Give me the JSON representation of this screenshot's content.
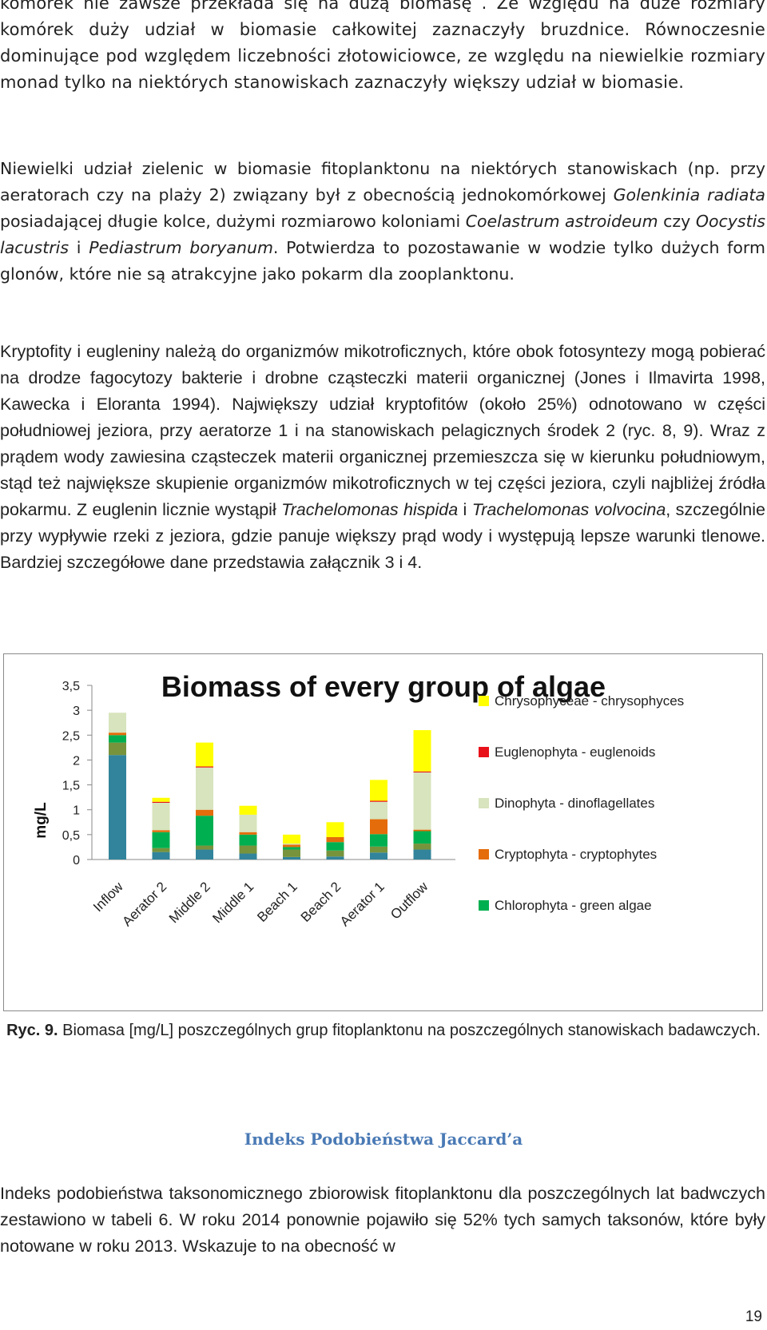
{
  "paragraphs": {
    "p1": "komórek nie zawsze przekłada się na dużą biomasę . Ze względu na duże rozmiary komórek duży udział w biomasie całkowitej zaznaczyły bruzdnice. Równoczesnie dominujące pod względem liczebności złotowiciowce, ze względu na niewielkie rozmiary monad tylko na niektórych stanowiskach zaznaczyły większy udział w biomasie.",
    "p2_a": "Niewielki udział zielenic w biomasie fitoplanktonu na niektórych stanowiskach (np. przy aeratorach czy na plaży 2) związany był z obecnością jednokomórkowej ",
    "p2_b": "Golenkinia radiata",
    "p2_c": " posiadającej długie kolce, dużymi rozmiarowo koloniami ",
    "p2_d": "Coelastrum astroideum",
    "p2_e": " czy ",
    "p2_f": "Oocystis lacustris",
    "p2_g": " i ",
    "p2_h": "Pediastrum boryanum",
    "p2_i": ". Potwierdza to pozostawanie w wodzie tylko dużych form glonów, które nie są atrakcyjne jako pokarm dla zooplanktonu.",
    "p3_a": "Kryptofity i eugleniny należą do organizmów mikotroficznych, które obok fotosyntezy mogą pobierać na drodze fagocytozy bakterie i drobne cząsteczki materii organicznej (Jones i Ilmavirta 1998, Kawecka i Eloranta 1994). Największy udział kryptofitów (około 25%) odnotowano w części południowej jeziora, przy aeratorze 1 i na stanowiskach pelagicznych środek 2 (ryc. 8, 9). Wraz z prądem wody zawiesina cząsteczek materii organicznej przemieszcza się w kierunku południowym, stąd też największe skupienie organizmów mikotroficznych w tej części jeziora, czyli najbliżej źródła pokarmu. Z euglenin licznie wystąpił ",
    "p3_b": "Trachelomonas hispida",
    "p3_c": " i ",
    "p3_d": "Trachelomonas volvocina",
    "p3_e": ", szczególnie przy wypływie rzeki z jeziora, gdzie panuje większy prąd wody i występują lepsze warunki tlenowe. Bardziej szczegółowe dane przedstawia załącznik 3 i 4.",
    "p4": "Indeks podobieństwa taksonomicznego zbiorowisk fitoplanktonu dla poszczególnych lat badwczych zestawiono w tabeli 6. W roku 2014 ponownie pojawiło się 52% tych samych taksonów, które były notowane w roku 2013. Wskazuje to na obecność w"
  },
  "caption": {
    "label": "Ryc. 9.",
    "text": " Biomasa [mg/L] poszczególnych grup fitoplanktonu na poszczególnych stanowiskach badawczych."
  },
  "section_heading": "Indeks Podobieństwa Jaccard’a",
  "page_number": "19",
  "chart_data": {
    "type": "bar",
    "stacked": true,
    "title": "Biomass of every group of algae",
    "ylabel": "mg/L",
    "xlabel": "",
    "ylim": [
      0,
      3.5
    ],
    "yticks": [
      "0",
      "0,5",
      "1",
      "1,5",
      "2",
      "2,5",
      "3",
      "3,5"
    ],
    "grid": false,
    "legend_position": "right",
    "categories": [
      "Inflow",
      "Aerator 2",
      "Middle 2",
      "Middle 1",
      "Beach 1",
      "Beach 2",
      "Aerator 1",
      "Outflow"
    ],
    "series": [
      {
        "name": "",
        "color": "#31849b",
        "values": [
          2.1,
          0.15,
          0.2,
          0.12,
          0.05,
          0.06,
          0.14,
          0.2
        ]
      },
      {
        "name": "",
        "color": "#77933c",
        "values": [
          0.25,
          0.08,
          0.08,
          0.16,
          0.15,
          0.12,
          0.12,
          0.12
        ]
      },
      {
        "name": "Chlorophyta - green algae",
        "color": "#00b050",
        "values": [
          0.15,
          0.32,
          0.6,
          0.22,
          0.05,
          0.17,
          0.25,
          0.25
        ]
      },
      {
        "name": "Cryptophyta - cryptophytes",
        "color": "#e46c0a",
        "values": [
          0.05,
          0.04,
          0.12,
          0.05,
          0.05,
          0.1,
          0.3,
          0.03
        ]
      },
      {
        "name": "Dinophyta - dinoflagellates",
        "color": "#d7e4bd",
        "values": [
          0.4,
          0.55,
          0.85,
          0.35,
          0.02,
          0.0,
          0.35,
          1.15
        ]
      },
      {
        "name": "Euglenophyta - euglenoids",
        "color": "#e8121a",
        "values": [
          0.0,
          0.02,
          0.02,
          0.0,
          0.0,
          0.0,
          0.02,
          0.02
        ]
      },
      {
        "name": "Chrysophyceae - chrysophyces",
        "color": "#ffff00",
        "values": [
          0.0,
          0.08,
          0.48,
          0.18,
          0.18,
          0.3,
          0.42,
          0.83
        ]
      }
    ]
  }
}
